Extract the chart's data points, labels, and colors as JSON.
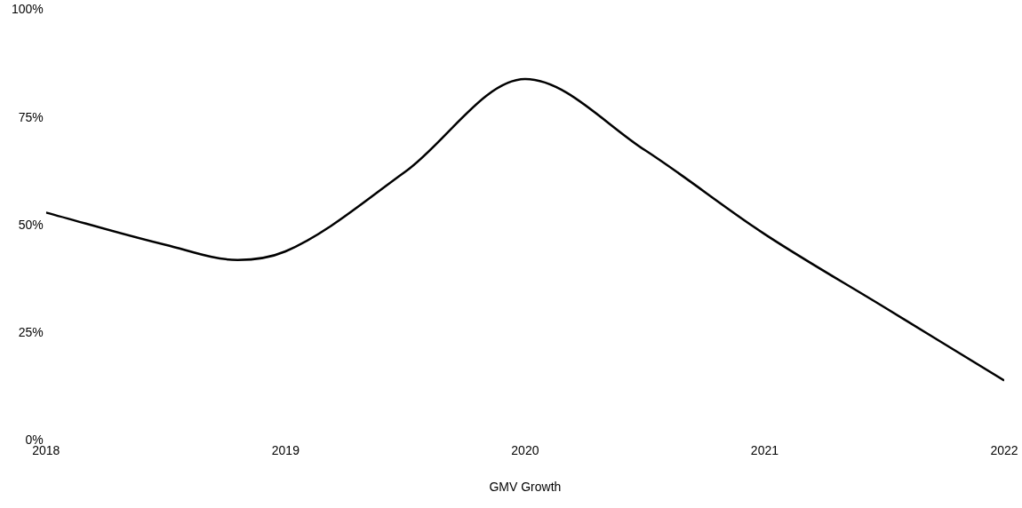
{
  "chart_data": {
    "type": "line",
    "xlabel": "GMV Growth",
    "x": [
      2018,
      2018.5,
      2018.8,
      2019,
      2019.5,
      2020,
      2020.5,
      2021,
      2021.5,
      2022
    ],
    "series": [
      {
        "color": "#000000",
        "values": [
          53,
          45.5,
          42,
          44,
          62.5,
          84,
          67.5,
          48,
          31,
          14
        ]
      }
    ],
    "xlim": [
      2018,
      2022
    ],
    "xticks": [
      2018,
      2019,
      2020,
      2021,
      2022
    ],
    "ylim": [
      0,
      100
    ],
    "yticks": [
      {
        "value": 0,
        "label": "0%"
      },
      {
        "value": 25,
        "label": "25%"
      },
      {
        "value": 50,
        "label": "50%"
      },
      {
        "value": 75,
        "label": "75%"
      },
      {
        "value": 100,
        "label": "100%"
      }
    ],
    "grid": false,
    "legend": false,
    "marker": "none",
    "line_style": "solid"
  }
}
